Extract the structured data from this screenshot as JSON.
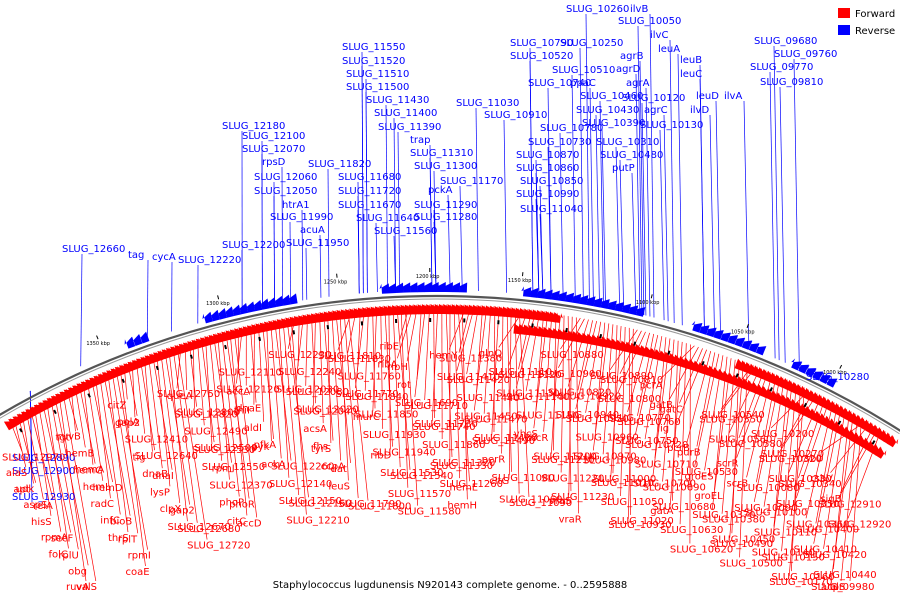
{
  "title": "Staphylococcus lugdunensis N920143 complete genome. - 0..2595888",
  "legend": [
    {
      "label": "Forward",
      "color": "#ff0000"
    },
    {
      "label": "Reverse",
      "color": "#0000ff"
    }
  ],
  "colors": {
    "forward": "#ff0000",
    "reverse": "#0000ff",
    "backbone": "#555555"
  },
  "kbp_ticks": [
    "1350 kbp",
    "1300 kbp",
    "1250 kbp",
    "1200 kbp",
    "1150 kbp",
    "1100 kbp",
    "1050 kbp",
    "1000 kbp"
  ],
  "reverse_labels": [
    "SLUG_12660",
    "tag",
    "cycA",
    "SLUG_12220",
    "SLUG_12200",
    "SLUG_12180",
    "SLUG_12100",
    "SLUG_12070",
    "rpsD",
    "SLUG_12060",
    "SLUG_12050",
    "htrA1",
    "SLUG_11990",
    "acuA",
    "SLUG_11950",
    "SLUG_11820",
    "SLUG_11680",
    "SLUG_11720",
    "SLUG_11670",
    "SLUG_11640",
    "SLUG_11560",
    "SLUG_11550",
    "SLUG_11520",
    "SLUG_11510",
    "SLUG_11500",
    "SLUG_11430",
    "SLUG_11400",
    "SLUG_11390",
    "trap",
    "SLUG_11310",
    "SLUG_11300",
    "pckA",
    "SLUG_11290",
    "SLUG_11280",
    "SLUG_11170",
    "SLUG_11030",
    "SLUG_10790",
    "SLUG_10520",
    "SLUG_10510",
    "SLUG_10740",
    "SLUG_10910",
    "SLUG_10780",
    "SLUG_10730",
    "SLUG_10870",
    "SLUG_10860",
    "SLUG_10850",
    "SLUG_10990",
    "SLUG_11040",
    "SLUG_10260",
    "SLUG_10250",
    "ppaC",
    "SLUG_10460",
    "SLUG_10430",
    "SLUG_10390",
    "SLUG_10310",
    "SLUG_10480",
    "putP",
    "ilvB",
    "SLUG_10050",
    "ilvC",
    "leuA",
    "agrB",
    "leuB",
    "agrD",
    "leuC",
    "agrA",
    "SLUG_10120",
    "leuD",
    "ilvA",
    "agrC",
    "ilvD",
    "SLUG_10130",
    "SLUG_09680",
    "SLUG_09760",
    "SLUG_09770",
    "SLUG_09810",
    "SLUG_12890",
    "SLUG_12900",
    "SLUG_12930",
    "SLUG_10280"
  ],
  "forward_labels": [
    "SLUG_12970",
    "alaS",
    "udk",
    "apt",
    "aspS",
    "relA",
    "hisS",
    "rpmA",
    "secF",
    "folC",
    "rplU",
    "obg",
    "ruvA",
    "valS",
    "ruvB",
    "tgt",
    "hemB",
    "hemA",
    "hemC",
    "hemL",
    "hemD",
    "radC",
    "infC",
    "bioB",
    "thrS",
    "rplT",
    "rpmI",
    "coaE",
    "citZ",
    "polA",
    "gap2",
    "SLUG_12410",
    "SLUG_12640",
    "tig",
    "dnaB",
    "dnaI",
    "lysP",
    "clpX",
    "gap2",
    "SLUG_12670",
    "SLUG_12680",
    "SLUG_12720",
    "SLUG_12750",
    "queA",
    "SLUG_12800",
    "SLUG_12820",
    "SLUG_12490",
    "SLUG_12500",
    "SLUG_12530",
    "SLUG_12550",
    "rpmI",
    "SLUG_12370",
    "phoP",
    "phoR",
    "citC",
    "accD",
    "SLUG_12110",
    "SLUG_12120",
    "accA",
    "dnaE",
    "thiI",
    "aldI",
    "pfkA",
    "pyk",
    "ackA",
    "SLUG_12260",
    "SLUG_12140",
    "SLUG_12150",
    "SLUG_12160",
    "SLUG_12210",
    "SLUG_12230",
    "SLUG_12240",
    "SLUG_12030",
    "SLUG_12080",
    "SLUG_12020",
    "SLUG_12040",
    "acsA",
    "fhs",
    "tyrS",
    "ccpA",
    "dat",
    "leuS",
    "SLUG_11790",
    "SLUG_11800",
    "SLUG_11810",
    "SLUG_11830",
    "SLUG_11760",
    "SLUG_11770",
    "SLUG_11840",
    "SLUG_11850",
    "murC",
    "SLUG_11930",
    "SLUG_11940",
    "ribD",
    "SLUG_11530",
    "SLUG_11540",
    "SLUG_11570",
    "SLUG_11580",
    "ribE",
    "ribA",
    "ribH",
    "rot",
    "SLUG_11690",
    "SLUG_11710",
    "SLUG_11730",
    "SLUG_11740",
    "SLUG_11860",
    "SLUG_11320",
    "SLUG_11330",
    "SLUG_11260",
    "hemE",
    "hemH",
    "hemY",
    "SLUG_11380",
    "SLUG_11410",
    "SLUG_11420",
    "SLUG_11440",
    "SLUG_11450",
    "SLUG_11470",
    "SLUG_11480",
    "SLUG_11490",
    "perR",
    "SLUG_11080",
    "citG",
    "SLUG_11060",
    "SLUG_11090",
    "glnQ",
    "SLUG_11110",
    "SLUG_11120",
    "SLUG_11130",
    "SLUG_11140",
    "SLUG_11150",
    "yhcS",
    "yhcR",
    "SLUG_11200",
    "SLUG_11210",
    "SLUG_11220",
    "SLUG_11230",
    "vraS",
    "vraR",
    "SLUG_10880",
    "SLUG_10900",
    "SLUG_10820",
    "SLUG_10920",
    "SLUG_10940",
    "SLUG_10950",
    "SLUG_10960",
    "SLUG_10970",
    "SLUG_10980",
    "SLUG_11000",
    "SLUG_11010",
    "SLUG_11050",
    "SLUG_11020",
    "SLUG_10930",
    "SLUG_10890",
    "SLUG_10810",
    "SLUG_10800",
    "SLUG_10770",
    "SLUG_10760",
    "SLUG_10750",
    "SLUG_10720",
    "SLUG_10710",
    "SLUG_10700",
    "SLUG_10690",
    "SLUG_10680",
    "gatA",
    "SLUG_10630",
    "SLUG_10620",
    "pcrA",
    "gatB",
    "gatC",
    "lig",
    "pcrB",
    "purB",
    "SLUG_10530",
    "groES",
    "groEL",
    "SLUG_10370",
    "SLUG_10380",
    "SLUG_10450",
    "SLUG_10490",
    "SLUG_10500",
    "SLUG_10540",
    "SLUG_10550",
    "SLUG_10560",
    "SLUG_10580",
    "scrR",
    "scrB",
    "SLUG_10080",
    "SLUG_10090",
    "SLUG_10100",
    "SLUG_10110",
    "SLUG_10140",
    "SLUG_10150",
    "SLUG_10160",
    "SLUG_10170",
    "SLUG_10200",
    "SLUG_10270",
    "SLUG_10320",
    "SLUG_10330",
    "SLUG_10340",
    "SLUG_10350",
    "SLUG_10360",
    "SLUG_10400",
    "SLUG_10410",
    "SLUG_10420",
    "SLUG_10440",
    "SLUG_09980",
    "acpS",
    "alr",
    "rsbU",
    "rsbV",
    "sigB",
    "SLUG_12910",
    "SLUG_12920"
  ]
}
